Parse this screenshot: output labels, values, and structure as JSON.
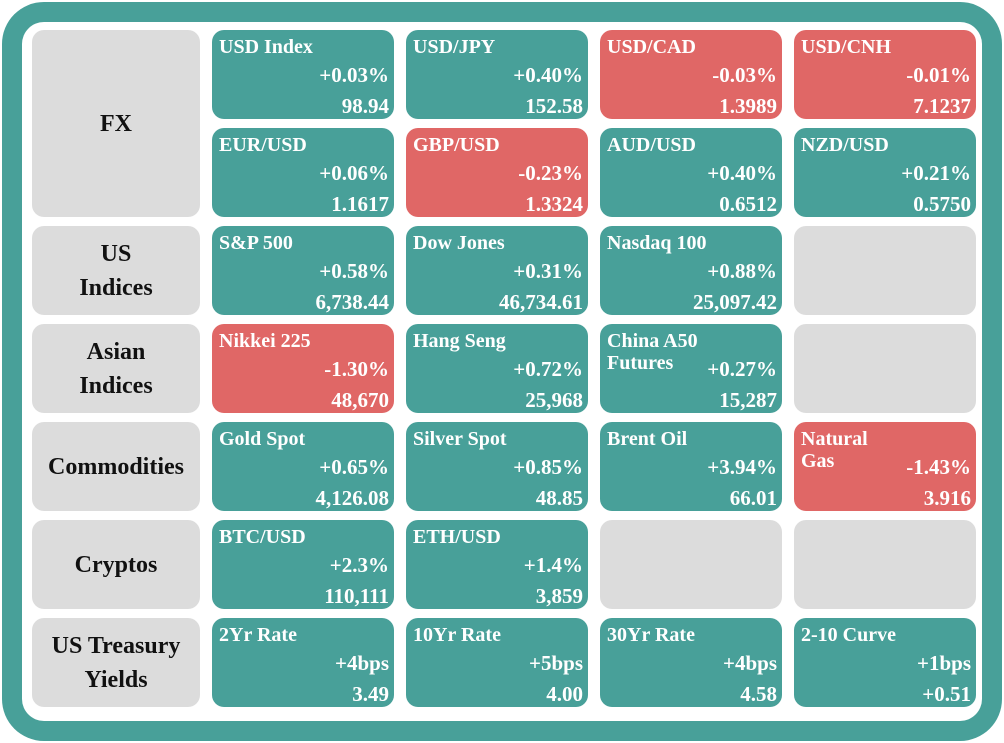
{
  "colors": {
    "frame": "#48a099",
    "up": "#48a099",
    "down": "#e06766",
    "empty": "#dcdcdc"
  },
  "categories": {
    "fx": "FX",
    "us_indices": "US\nIndices",
    "asian_indices": "Asian\nIndices",
    "commodities": "Commodities",
    "cryptos": "Cryptos",
    "treasury": "US Treasury\nYields"
  },
  "tiles": {
    "usd_index": {
      "name": "USD Index",
      "change": "+0.03%",
      "value": "98.94",
      "direction": "up"
    },
    "usd_jpy": {
      "name": "USD/JPY",
      "change": "+0.40%",
      "value": "152.58",
      "direction": "up"
    },
    "usd_cad": {
      "name": "USD/CAD",
      "change": "-0.03%",
      "value": "1.3989",
      "direction": "down"
    },
    "usd_cnh": {
      "name": "USD/CNH",
      "change": "-0.01%",
      "value": "7.1237",
      "direction": "down"
    },
    "eur_usd": {
      "name": "EUR/USD",
      "change": "+0.06%",
      "value": "1.1617",
      "direction": "up"
    },
    "gbp_usd": {
      "name": "GBP/USD",
      "change": "-0.23%",
      "value": "1.3324",
      "direction": "down"
    },
    "aud_usd": {
      "name": "AUD/USD",
      "change": "+0.40%",
      "value": "0.6512",
      "direction": "up"
    },
    "nzd_usd": {
      "name": "NZD/USD",
      "change": "+0.21%",
      "value": "0.5750",
      "direction": "up"
    },
    "sp500": {
      "name": "S&P 500",
      "change": "+0.58%",
      "value": "6,738.44",
      "direction": "up"
    },
    "dow_jones": {
      "name": "Dow Jones",
      "change": "+0.31%",
      "value": "46,734.61",
      "direction": "up"
    },
    "nasdaq100": {
      "name": "Nasdaq 100",
      "change": "+0.88%",
      "value": "25,097.42",
      "direction": "up"
    },
    "nikkei225": {
      "name": "Nikkei 225",
      "change": "-1.30%",
      "value": "48,670",
      "direction": "down"
    },
    "hang_seng": {
      "name": "Hang Seng",
      "change": "+0.72%",
      "value": "25,968",
      "direction": "up"
    },
    "china_a50": {
      "name": "China A50 Futures",
      "change": "+0.27%",
      "value": "15,287",
      "direction": "up"
    },
    "gold_spot": {
      "name": "Gold Spot",
      "change": "+0.65%",
      "value": "4,126.08",
      "direction": "up"
    },
    "silver_spot": {
      "name": "Silver Spot",
      "change": "+0.85%",
      "value": "48.85",
      "direction": "up"
    },
    "brent_oil": {
      "name": "Brent Oil",
      "change": "+3.94%",
      "value": "66.01",
      "direction": "up"
    },
    "natural_gas": {
      "name": "Natural Gas",
      "change": "-1.43%",
      "value": "3.916",
      "direction": "down"
    },
    "btc_usd": {
      "name": "BTC/USD",
      "change": "+2.3%",
      "value": "110,111",
      "direction": "up"
    },
    "eth_usd": {
      "name": "ETH/USD",
      "change": "+1.4%",
      "value": "3,859",
      "direction": "up"
    },
    "yr2_rate": {
      "name": "2Yr Rate",
      "change": "+4bps",
      "value": "3.49",
      "direction": "up"
    },
    "yr10_rate": {
      "name": "10Yr Rate",
      "change": "+5bps",
      "value": "4.00",
      "direction": "up"
    },
    "yr30_rate": {
      "name": "30Yr Rate",
      "change": "+4bps",
      "value": "4.58",
      "direction": "up"
    },
    "curve_2_10": {
      "name": "2-10 Curve",
      "change": "+1bps",
      "value": "+0.51",
      "direction": "up"
    }
  }
}
